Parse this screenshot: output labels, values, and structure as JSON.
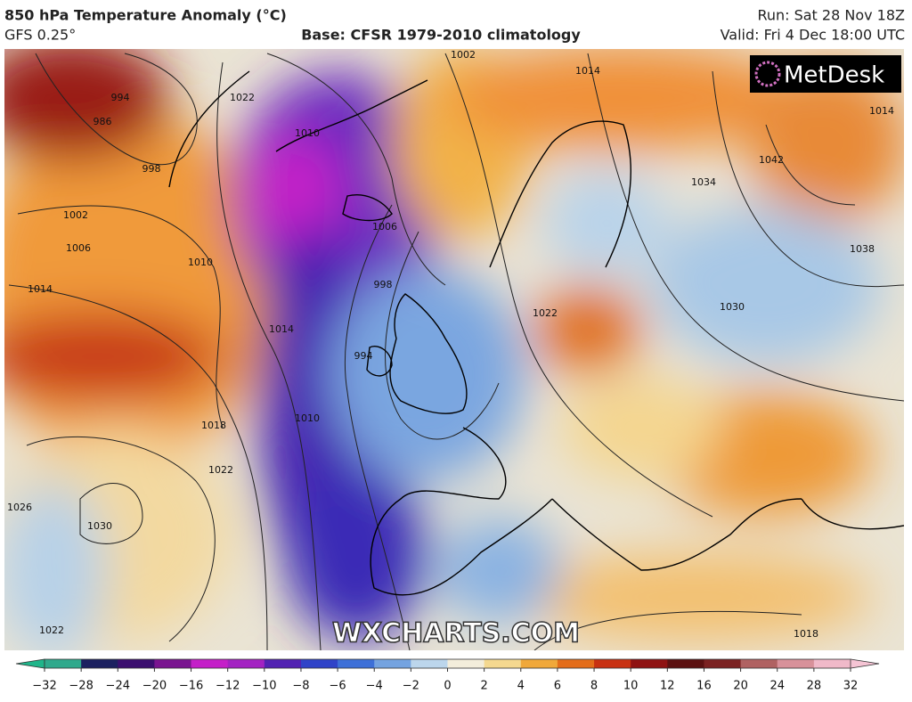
{
  "header": {
    "title": "850 hPa Temperature Anomaly (°C)",
    "model": "GFS 0.25°",
    "base": "Base: CFSR 1979-2010 climatology",
    "run": "Run: Sat 28 Nov 18Z",
    "valid": "Valid: Fri 4 Dec 18:00 UTC"
  },
  "logo": "MetDesk",
  "watermark": "WXCHARTS.COM",
  "isobars": [
    "986",
    "994",
    "998",
    "1002",
    "1006",
    "1014",
    "1010",
    "1018",
    "1022",
    "1026",
    "1030",
    "1022",
    "1002",
    "1006",
    "1010",
    "1014",
    "1022",
    "998",
    "994",
    "1010",
    "1014",
    "1022",
    "1030",
    "1034",
    "1042",
    "1038",
    "1018",
    "1014"
  ],
  "colorbar": {
    "ticks": [
      {
        "value": -32,
        "label": "−32"
      },
      {
        "value": -28,
        "label": "−28"
      },
      {
        "value": -24,
        "label": "−24"
      },
      {
        "value": -20,
        "label": "−20"
      },
      {
        "value": -16,
        "label": "−16"
      },
      {
        "value": -12,
        "label": "−12"
      },
      {
        "value": -10,
        "label": "−10"
      },
      {
        "value": -8,
        "label": "−8"
      },
      {
        "value": -6,
        "label": "−6"
      },
      {
        "value": -4,
        "label": "−4"
      },
      {
        "value": -2,
        "label": "−2"
      },
      0,
      2,
      4,
      6,
      8,
      10,
      12,
      16,
      20,
      24,
      28,
      32
    ],
    "colors": [
      "#2fa98c",
      "#1c2160",
      "#3b0f6f",
      "#7a1590",
      "#c41fc8",
      "#a322c2",
      "#5222b2",
      "#2f43c8",
      "#3d70d8",
      "#74a3e0",
      "#bcd6ec",
      "#f3eddb",
      "#f4d88f",
      "#f0a83a",
      "#e36d1a",
      "#c83112",
      "#8f1212",
      "#5b1111",
      "#7b2222",
      "#b06262",
      "#d8919a",
      "#f0b9c9"
    ],
    "low_color": "#1fb58a",
    "high_color": "#f5c4d4"
  }
}
